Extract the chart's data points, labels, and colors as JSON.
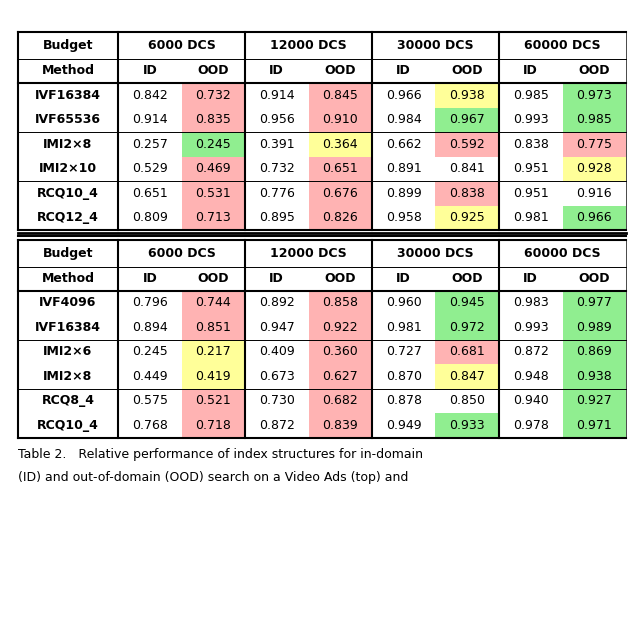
{
  "caption": "Table 2.   Relative performance of index structures for in-domain\n(ID) and out-of-domain (OOD) search on a Video Ads (top) and",
  "budget_dcs": [
    "6000 DCS",
    "12000 DCS",
    "30000 DCS",
    "60000 DCS"
  ],
  "table1_rows": [
    {
      "method": "IVF16384",
      "vals": [
        0.842,
        0.732,
        0.914,
        0.845,
        0.966,
        0.938,
        0.985,
        0.973
      ]
    },
    {
      "method": "IVF65536",
      "vals": [
        0.914,
        0.835,
        0.956,
        0.91,
        0.984,
        0.967,
        0.993,
        0.985
      ]
    },
    {
      "method": "IMI2×8",
      "vals": [
        0.257,
        0.245,
        0.391,
        0.364,
        0.662,
        0.592,
        0.838,
        0.775
      ]
    },
    {
      "method": "IMI2×10",
      "vals": [
        0.529,
        0.469,
        0.732,
        0.651,
        0.891,
        0.841,
        0.951,
        0.928
      ]
    },
    {
      "method": "RCQ10_4",
      "vals": [
        0.651,
        0.531,
        0.776,
        0.676,
        0.899,
        0.838,
        0.951,
        0.916
      ]
    },
    {
      "method": "RCQ12_4",
      "vals": [
        0.809,
        0.713,
        0.895,
        0.826,
        0.958,
        0.925,
        0.981,
        0.966
      ]
    }
  ],
  "table1_groups": [
    2,
    2,
    2
  ],
  "table1_colors": [
    [
      "W",
      "P",
      "W",
      "P",
      "W",
      "Y",
      "W",
      "G"
    ],
    [
      "W",
      "P",
      "W",
      "P",
      "W",
      "G",
      "W",
      "G"
    ],
    [
      "W",
      "G",
      "W",
      "Y",
      "W",
      "P",
      "W",
      "P"
    ],
    [
      "W",
      "P",
      "W",
      "P",
      "W",
      "W",
      "W",
      "Y"
    ],
    [
      "W",
      "P",
      "W",
      "P",
      "W",
      "P",
      "W",
      "W"
    ],
    [
      "W",
      "P",
      "W",
      "P",
      "W",
      "Y",
      "W",
      "G"
    ]
  ],
  "table2_rows": [
    {
      "method": "IVF4096",
      "vals": [
        0.796,
        0.744,
        0.892,
        0.858,
        0.96,
        0.945,
        0.983,
        0.977
      ]
    },
    {
      "method": "IVF16384",
      "vals": [
        0.894,
        0.851,
        0.947,
        0.922,
        0.981,
        0.972,
        0.993,
        0.989
      ]
    },
    {
      "method": "IMI2×6",
      "vals": [
        0.245,
        0.217,
        0.409,
        0.36,
        0.727,
        0.681,
        0.872,
        0.869
      ]
    },
    {
      "method": "IMI2×8",
      "vals": [
        0.449,
        0.419,
        0.673,
        0.627,
        0.87,
        0.847,
        0.948,
        0.938
      ]
    },
    {
      "method": "RCQ8_4",
      "vals": [
        0.575,
        0.521,
        0.73,
        0.682,
        0.878,
        0.85,
        0.94,
        0.927
      ]
    },
    {
      "method": "RCQ10_4",
      "vals": [
        0.768,
        0.718,
        0.872,
        0.839,
        0.949,
        0.933,
        0.978,
        0.971
      ]
    }
  ],
  "table2_groups": [
    2,
    2,
    2
  ],
  "table2_colors": [
    [
      "W",
      "P",
      "W",
      "P",
      "W",
      "G",
      "W",
      "G"
    ],
    [
      "W",
      "P",
      "W",
      "P",
      "W",
      "G",
      "W",
      "G"
    ],
    [
      "W",
      "Y",
      "W",
      "P",
      "W",
      "P",
      "W",
      "G"
    ],
    [
      "W",
      "Y",
      "W",
      "P",
      "W",
      "Y",
      "W",
      "G"
    ],
    [
      "W",
      "P",
      "W",
      "P",
      "W",
      "W",
      "W",
      "G"
    ],
    [
      "W",
      "P",
      "W",
      "P",
      "W",
      "G",
      "W",
      "G"
    ]
  ],
  "color_P": "#FFB3B3",
  "color_G": "#90EE90",
  "color_Y": "#FFFF99",
  "color_W": "#FFFFFF",
  "figsize": [
    6.4,
    6.27
  ],
  "dpi": 100
}
